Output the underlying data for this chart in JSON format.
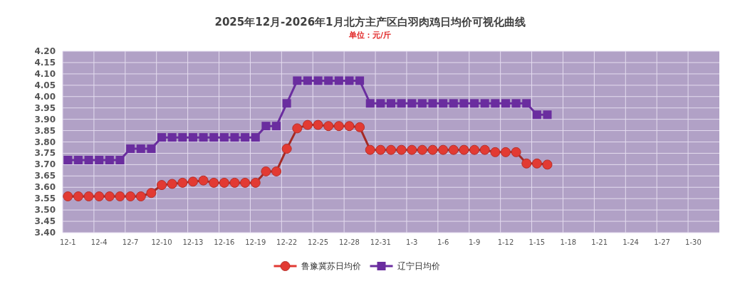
{
  "chart_data": {
    "type": "line",
    "title": "2025年12月-2026年1月北方主产区白羽肉鸡日均价可视化曲线",
    "subtitle": "单位：元/斤",
    "categories": [
      "12-1",
      null,
      null,
      "12-4",
      null,
      null,
      "12-7",
      null,
      null,
      "12-10",
      null,
      null,
      "12-13",
      null,
      null,
      "12-16",
      null,
      null,
      "12-19",
      null,
      null,
      "12-22",
      null,
      null,
      "12-25",
      null,
      null,
      "12-28",
      null,
      null,
      "12-31",
      null,
      null,
      "1-3",
      null,
      null,
      "1-6",
      null,
      null,
      "1-9",
      null,
      null,
      "1-12",
      null,
      null,
      "1-15",
      null,
      null,
      "1-18",
      null,
      null,
      "1-21",
      null,
      null,
      "1-24",
      null,
      null,
      "1-27",
      null,
      null,
      "1-30",
      null,
      null
    ],
    "series": [
      {
        "name": "鲁豫冀苏日均价",
        "color": "#e23a33",
        "marker": "circle",
        "values": [
          3.56,
          3.56,
          3.56,
          3.56,
          3.56,
          3.56,
          3.56,
          3.56,
          3.575,
          3.61,
          3.615,
          3.62,
          3.625,
          3.63,
          3.62,
          3.62,
          3.62,
          3.62,
          3.62,
          3.67,
          3.67,
          3.77,
          3.86,
          3.875,
          3.875,
          3.87,
          3.87,
          3.87,
          3.865,
          3.765,
          3.765,
          3.765,
          3.765,
          3.765,
          3.765,
          3.765,
          3.765,
          3.765,
          3.765,
          3.765,
          3.765,
          3.755,
          3.755,
          3.755,
          3.705,
          3.705,
          3.7,
          null,
          null,
          null,
          null,
          null,
          null,
          null,
          null,
          null,
          null,
          null,
          null,
          null,
          null,
          null,
          null
        ]
      },
      {
        "name": "辽宁日均价",
        "color": "#6a2d9f",
        "marker": "square",
        "values": [
          3.72,
          3.72,
          3.72,
          3.72,
          3.72,
          3.72,
          3.77,
          3.77,
          3.77,
          3.82,
          3.82,
          3.82,
          3.82,
          3.82,
          3.82,
          3.82,
          3.82,
          3.82,
          3.82,
          3.87,
          3.87,
          3.97,
          4.07,
          4.07,
          4.07,
          4.07,
          4.07,
          4.07,
          4.07,
          3.97,
          3.97,
          3.97,
          3.97,
          3.97,
          3.97,
          3.97,
          3.97,
          3.97,
          3.97,
          3.97,
          3.97,
          3.97,
          3.97,
          3.97,
          3.97,
          3.92,
          3.92,
          null,
          null,
          null,
          null,
          null,
          null,
          null,
          null,
          null,
          null,
          null,
          null,
          null,
          null,
          null,
          null
        ]
      }
    ],
    "ylim": [
      3.4,
      4.2
    ],
    "yticks": [
      {
        "value": 3.4,
        "label": "3.40"
      },
      3.45,
      {
        "value": 3.5,
        "label": "3.50"
      },
      3.55,
      {
        "value": 3.6,
        "label": "3.60"
      },
      3.65,
      {
        "value": 3.7,
        "label": "3.70"
      },
      3.75,
      {
        "value": 3.8,
        "label": "3.80"
      },
      3.85,
      {
        "value": 3.9,
        "label": "3.90"
      },
      3.95,
      {
        "value": 4,
        "label": "4.00"
      },
      4.05,
      {
        "value": 4.1,
        "label": "4.10"
      },
      4.15,
      {
        "value": 4.2,
        "label": "4.20"
      }
    ],
    "grid": true,
    "legend": "bottom",
    "line_style": "solid"
  }
}
